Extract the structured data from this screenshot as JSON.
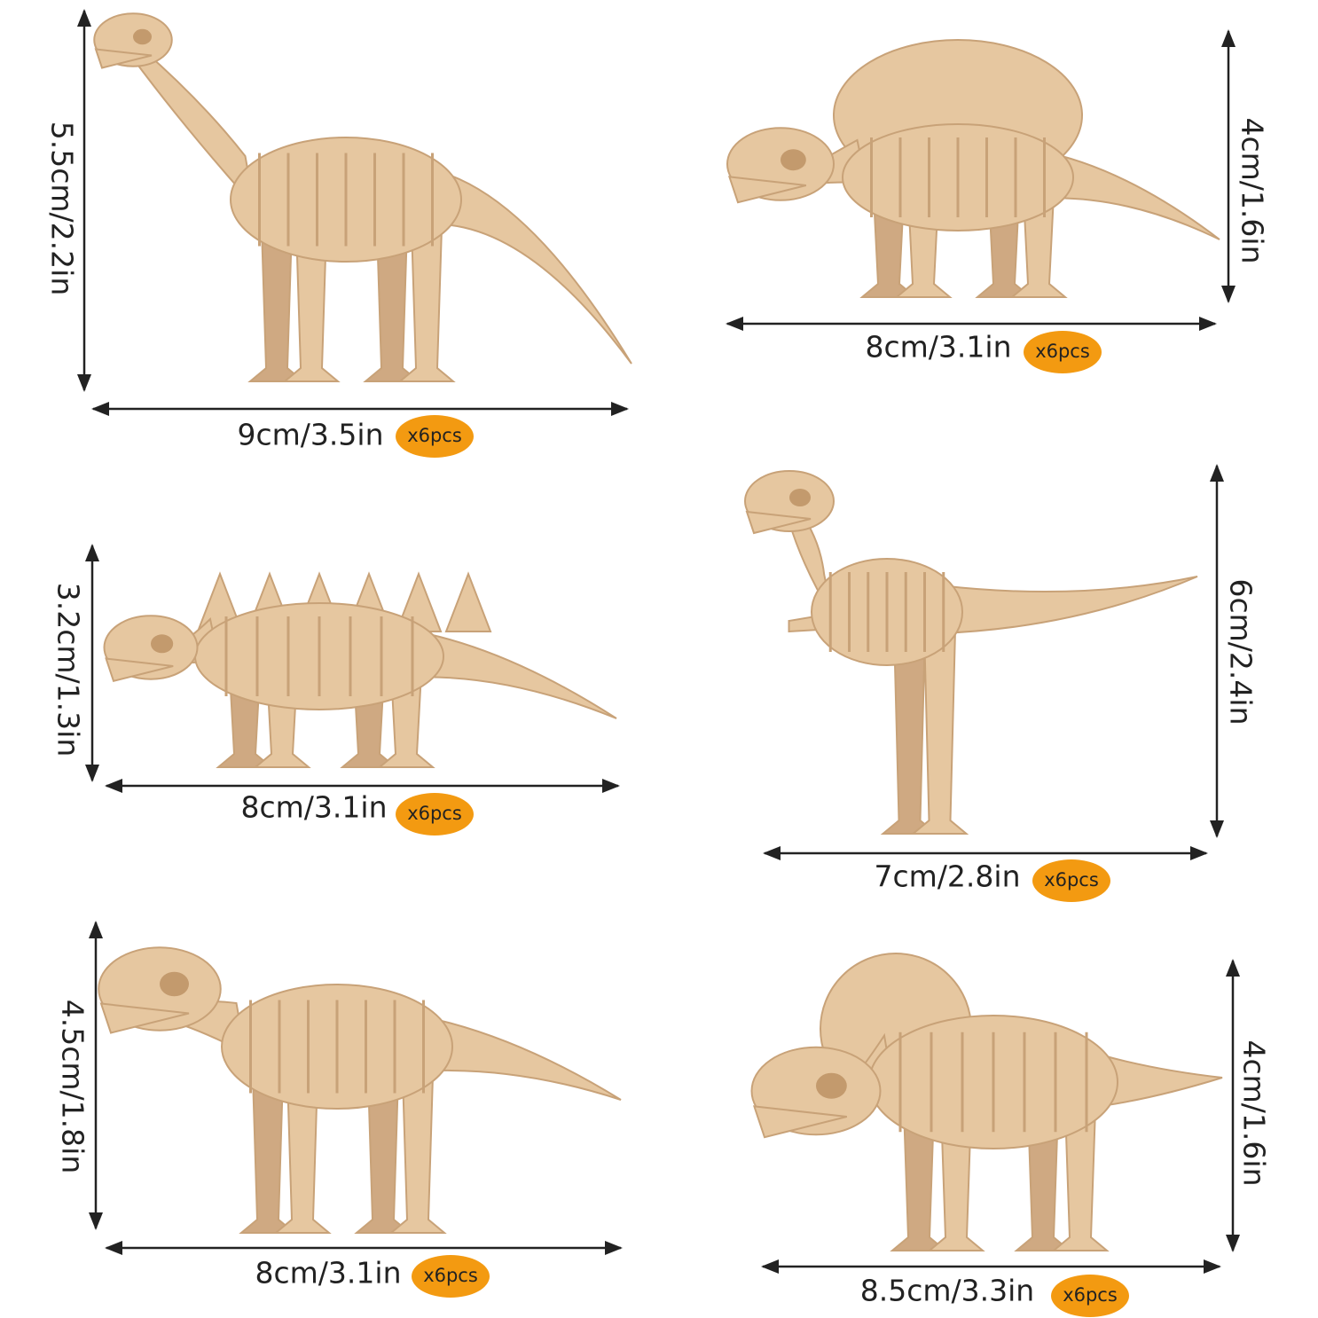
{
  "items": [
    {
      "height": "5.5cm/2.2in",
      "width": "9cm/3.5in",
      "badge": "x6pcs"
    },
    {
      "height": "4cm/1.6in",
      "width": "8cm/3.1in",
      "badge": "x6pcs"
    },
    {
      "height": "3.2cm/1.3in",
      "width": "8cm/3.1in",
      "badge": "x6pcs"
    },
    {
      "height": "6cm/2.4in",
      "width": "7cm/2.8in",
      "badge": "x6pcs"
    },
    {
      "height": "4.5cm/1.8in",
      "width": "8cm/3.1in",
      "badge": "x6pcs"
    },
    {
      "height": "4cm/1.6in",
      "width": "8.5cm/3.3in",
      "badge": "x6pcs"
    }
  ]
}
